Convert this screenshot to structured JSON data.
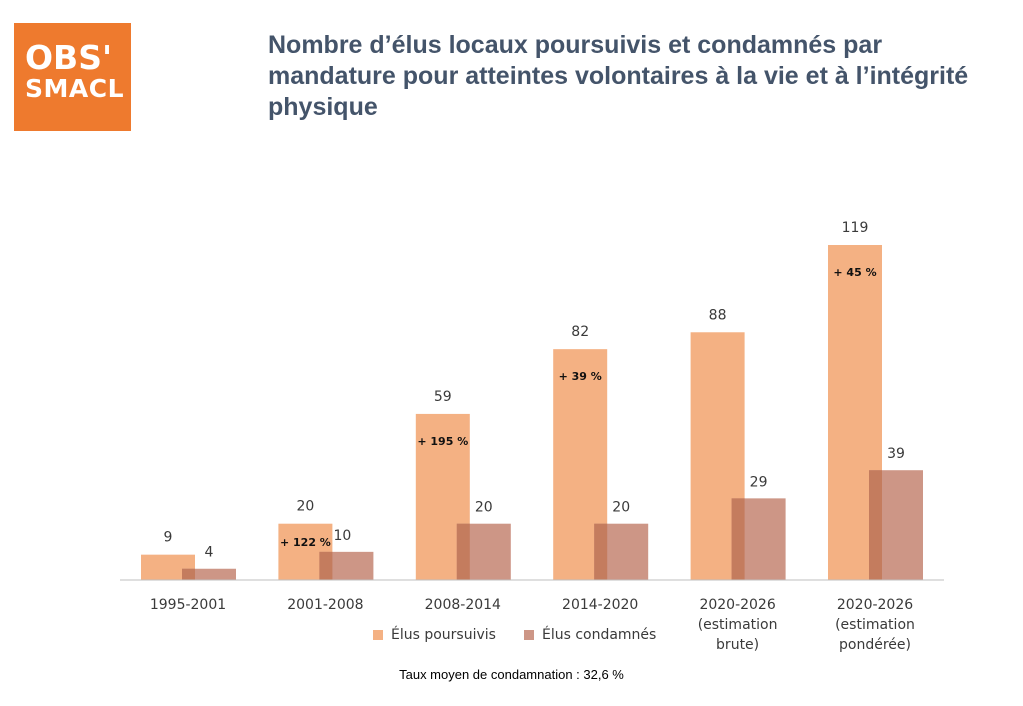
{
  "logo": {
    "line1": "OBS'",
    "line2": "SMACL"
  },
  "title": "Nombre d’élus locaux poursuivis et condamnés par mandature pour atteintes volontaires à la vie et à l’intégrité physique",
  "legend": {
    "series1": "Élus poursuivis",
    "series2": "Élus condamnés"
  },
  "footnote": "Taux moyen de condamnation : 32,6 %",
  "colors": {
    "poursuivis": "#F4B183",
    "condamnes": "#CD9686",
    "overlap": "#C47C5E",
    "logo": "#EE7A2E",
    "title": "#44546A"
  },
  "chart_data": {
    "type": "bar",
    "categories": [
      [
        "1995-2001"
      ],
      [
        "2001-2008"
      ],
      [
        "2008-2014"
      ],
      [
        "2014-2020"
      ],
      [
        "2020-2026",
        "(estimation",
        "brute)"
      ],
      [
        "2020-2026",
        "(estimation",
        "pondérée)"
      ]
    ],
    "series": [
      {
        "name": "Élus poursuivis",
        "values": [
          9,
          20,
          59,
          82,
          88,
          119
        ]
      },
      {
        "name": "Élus condamnés",
        "values": [
          4,
          10,
          20,
          20,
          29,
          39
        ]
      }
    ],
    "annotations": [
      {
        "category_index": 1,
        "text": "+ 122 %"
      },
      {
        "category_index": 2,
        "text": "+ 195 %"
      },
      {
        "category_index": 3,
        "text": "+ 39 %"
      },
      {
        "category_index": 5,
        "text": "+ 45 %"
      }
    ],
    "legend_position": "bottom",
    "grid": false
  }
}
